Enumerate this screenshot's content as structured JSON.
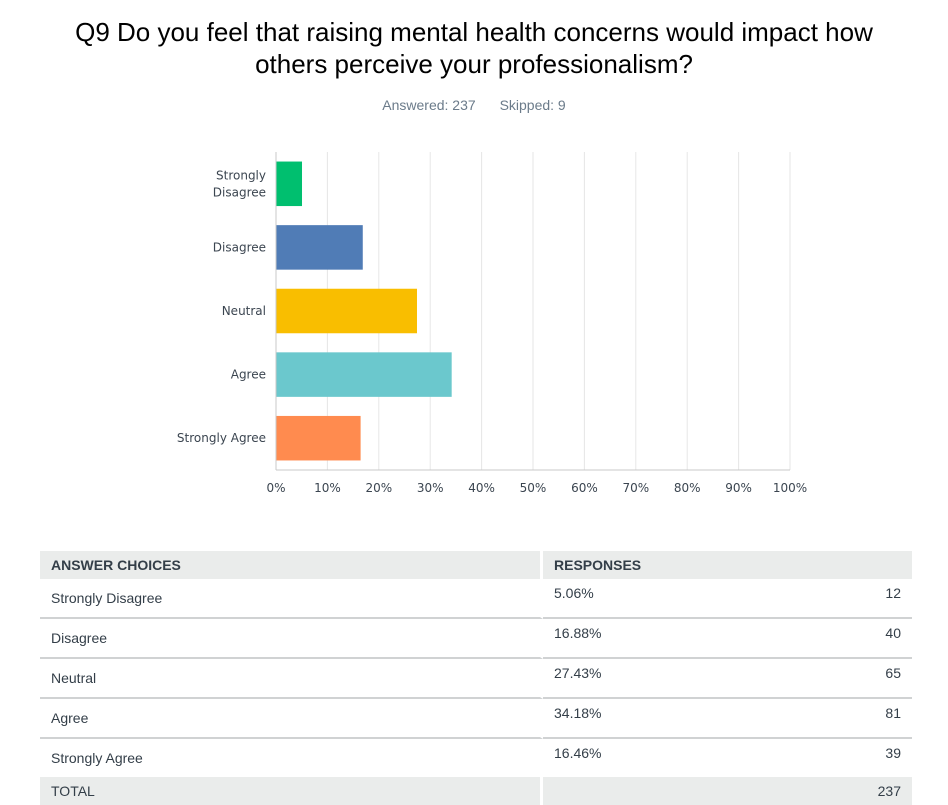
{
  "header": {
    "title_line1": "Q9 Do you feel that raising mental health concerns would impact how",
    "title_line2": "others perceive your professionalism?",
    "answered": "Answered: 237",
    "skipped": "Skipped: 9"
  },
  "chart_data": {
    "type": "bar",
    "orientation": "horizontal",
    "title": "Q9 Do you feel that raising mental health concerns would impact how others perceive your professionalism?",
    "categories": [
      "Strongly Disagree",
      "Disagree",
      "Neutral",
      "Agree",
      "Strongly Agree"
    ],
    "category_label_lines": [
      [
        "Strongly",
        "Disagree"
      ],
      [
        "Disagree"
      ],
      [
        "Neutral"
      ],
      [
        "Agree"
      ],
      [
        "Strongly Agree"
      ]
    ],
    "values": [
      5.06,
      16.88,
      27.43,
      34.18,
      16.46
    ],
    "colors": [
      "#00bf6f",
      "#507cb6",
      "#f9be00",
      "#6bc8cd",
      "#ff8b4f"
    ],
    "xlabel": "",
    "ylabel": "",
    "xlim": [
      0,
      100
    ],
    "ticks": [
      0,
      10,
      20,
      30,
      40,
      50,
      60,
      70,
      80,
      90,
      100
    ],
    "tick_labels": [
      "0%",
      "10%",
      "20%",
      "30%",
      "40%",
      "50%",
      "60%",
      "70%",
      "80%",
      "90%",
      "100%"
    ],
    "grid": true,
    "legend": "none"
  },
  "table": {
    "headers": [
      "ANSWER CHOICES",
      "RESPONSES"
    ],
    "rows": [
      {
        "choice": "Strongly Disagree",
        "percent": "5.06%",
        "count": "12"
      },
      {
        "choice": "Disagree",
        "percent": "16.88%",
        "count": "40"
      },
      {
        "choice": "Neutral",
        "percent": "27.43%",
        "count": "65"
      },
      {
        "choice": "Agree",
        "percent": "34.18%",
        "count": "81"
      },
      {
        "choice": "Strongly Agree",
        "percent": "16.46%",
        "count": "39"
      }
    ],
    "total_label": "TOTAL",
    "total_count": "237"
  }
}
